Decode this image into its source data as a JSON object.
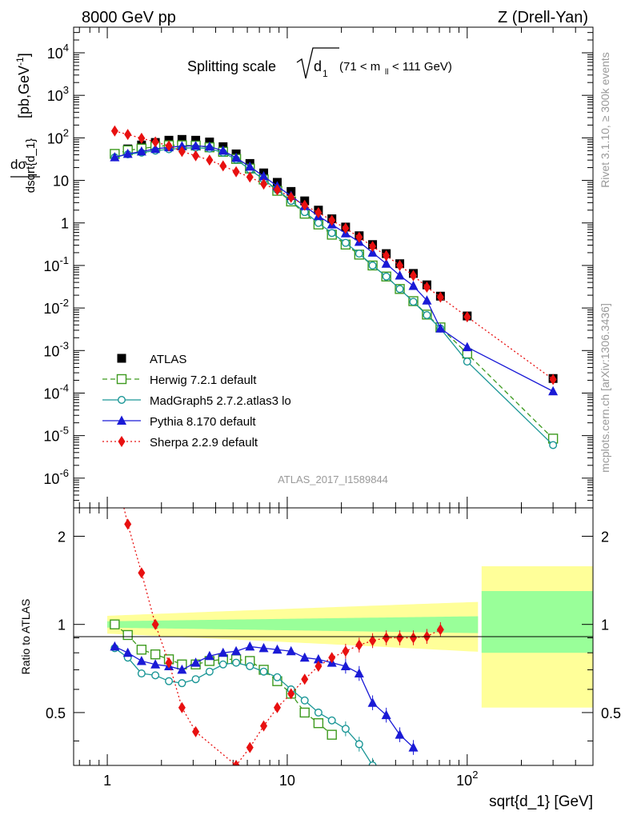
{
  "header": {
    "left": "8000 GeV pp",
    "right": "Z (Drell-Yan)"
  },
  "side": {
    "rivet": "Rivet 3.1.10, ≥ 300k events",
    "mcplots": "mcplots.cern.ch [arXiv:1306.3436]"
  },
  "watermark": "ATLAS_2017_I1589844",
  "chart_data": [
    {
      "type": "scatter",
      "title": "Splitting scale √d1 (71 < mll < 111 GeV)",
      "title_parts": {
        "main": "Splitting scale",
        "sym": "d",
        "sub": "1",
        "range": "(71 < m",
        "range_sub": "ll",
        "range_end": " < 111 GeV)"
      },
      "xlabel": "sqrt{d_1} [GeV]",
      "ylabel": "dσ/dsqrt{d_1} [pb,GeV⁻¹]",
      "ylabel_parts": {
        "num": "dσ",
        "den": "dsqrt{d_1}",
        "unit": "[pb,GeV",
        "unit_sup": "-1",
        "unit_end": "]"
      },
      "xscale": "log",
      "yscale": "log",
      "xlim": [
        0.65,
        500
      ],
      "ylim": [
        2e-07,
        40000.0
      ],
      "x_ticks": [
        "1",
        "10",
        "10²"
      ],
      "y_ticks": [
        "10⁻⁶",
        "10⁻⁵",
        "10⁻⁴",
        "10⁻³",
        "10⁻²",
        "10⁻¹",
        "1",
        "10",
        "10²",
        "10³",
        "10⁴"
      ],
      "legend_position": "lower-left",
      "series": [
        {
          "name": "ATLAS",
          "color": "#000000",
          "marker": "square",
          "x": [
            1.1,
            1.3,
            1.55,
            1.85,
            2.2,
            2.6,
            3.1,
            3.7,
            4.4,
            5.2,
            6.2,
            7.4,
            8.8,
            10.5,
            12.5,
            14.9,
            17.7,
            21.1,
            25.1,
            29.8,
            35.5,
            42.2,
            50.2,
            59.7,
            71.0,
            100,
            300
          ],
          "y": [
            42,
            55,
            68,
            78,
            88,
            92,
            88,
            80,
            62,
            42,
            25,
            15,
            9,
            5.5,
            3.3,
            2.0,
            1.25,
            0.8,
            0.5,
            0.31,
            0.19,
            0.11,
            0.065,
            0.035,
            0.019,
            0.0065,
            0.00022
          ]
        },
        {
          "name": "Herwig 7.2.1 default",
          "color": "#3d9a1e",
          "marker": "open-square",
          "line": "dashed",
          "x": [
            1.1,
            1.3,
            1.55,
            1.85,
            2.2,
            2.6,
            3.1,
            3.7,
            4.4,
            5.2,
            6.2,
            7.4,
            8.8,
            10.5,
            12.5,
            14.9,
            17.7,
            21.1,
            25.1,
            29.8,
            35.5,
            42.2,
            50.2,
            59.7,
            71.0,
            100,
            300
          ],
          "y": [
            42,
            51,
            56,
            62,
            67,
            67,
            66,
            60,
            47,
            32,
            19,
            10.5,
            5.7,
            3.2,
            1.65,
            0.92,
            0.53,
            0.31,
            0.18,
            0.1,
            0.055,
            0.028,
            0.0145,
            0.007,
            0.0035,
            0.00085,
            8.5e-06
          ]
        },
        {
          "name": "MadGraph5 2.7.2.atlas3 lo",
          "color": "#1a9696",
          "marker": "open-circle",
          "line": "solid",
          "x": [
            1.1,
            1.3,
            1.55,
            1.85,
            2.2,
            2.6,
            3.1,
            3.7,
            4.4,
            5.2,
            6.2,
            7.4,
            8.8,
            10.5,
            12.5,
            14.9,
            17.7,
            21.1,
            25.1,
            29.8,
            35.5,
            42.2,
            50.2,
            59.7,
            71.0,
            100,
            300
          ],
          "y": [
            35,
            41,
            45,
            50,
            54,
            57,
            59,
            56,
            45,
            31,
            18,
            10.5,
            6.0,
            3.3,
            1.8,
            1.0,
            0.58,
            0.34,
            0.19,
            0.1,
            0.055,
            0.028,
            0.014,
            0.0068,
            0.0033,
            0.00055,
            6e-06
          ]
        },
        {
          "name": "Pythia 8.170 default",
          "color": "#1a1ad6",
          "marker": "triangle",
          "line": "solid",
          "x": [
            1.1,
            1.3,
            1.55,
            1.85,
            2.2,
            2.6,
            3.1,
            3.7,
            4.4,
            5.2,
            6.2,
            7.4,
            8.8,
            10.5,
            12.5,
            14.9,
            17.7,
            21.1,
            25.1,
            29.8,
            35.5,
            42.2,
            50.2,
            59.7,
            71.0,
            100,
            300
          ],
          "y": [
            35,
            42,
            48,
            55,
            60,
            64,
            65,
            62,
            50,
            34,
            21,
            12.5,
            7.3,
            4.3,
            2.5,
            1.45,
            0.92,
            0.57,
            0.36,
            0.2,
            0.11,
            0.058,
            0.033,
            0.015,
            0.0033,
            0.0012,
            0.00011
          ]
        },
        {
          "name": "Sherpa 2.2.9 default",
          "color": "#e81010",
          "marker": "diamond",
          "line": "dotted",
          "x": [
            1.1,
            1.3,
            1.55,
            1.85,
            2.2,
            2.6,
            3.1,
            3.7,
            4.4,
            5.2,
            6.2,
            7.4,
            8.8,
            10.5,
            12.5,
            14.9,
            17.7,
            21.1,
            25.1,
            29.8,
            35.5,
            42.2,
            50.2,
            59.7,
            71.0,
            100,
            300
          ],
          "y": [
            145,
            120,
            98,
            80,
            65,
            48,
            38,
            30,
            22,
            16,
            12,
            8.2,
            6.0,
            4.0,
            2.6,
            1.75,
            1.15,
            0.75,
            0.46,
            0.28,
            0.17,
            0.1,
            0.058,
            0.031,
            0.018,
            0.0062,
            0.00021
          ]
        }
      ]
    },
    {
      "type": "line",
      "ylabel": "Ratio to ATLAS",
      "xscale": "log",
      "yscale": "log",
      "xlim": [
        0.65,
        500
      ],
      "ylim": [
        0.33,
        2.5
      ],
      "y_ticks": [
        "0.5",
        "1",
        "2"
      ],
      "band_inner_color": "#99ff99",
      "band_outer_color": "#ffff99",
      "series": [
        {
          "name": "Herwig 7.2.1 default",
          "color": "#3d9a1e",
          "x": [
            1.1,
            1.3,
            1.55,
            1.85,
            2.2,
            2.6,
            3.1,
            3.7,
            4.4,
            5.2,
            6.2,
            7.4,
            8.8,
            10.5,
            12.5,
            14.9,
            17.7
          ],
          "y": [
            1.0,
            0.92,
            0.82,
            0.79,
            0.76,
            0.73,
            0.73,
            0.75,
            0.76,
            0.76,
            0.75,
            0.7,
            0.64,
            0.58,
            0.5,
            0.46,
            0.42
          ]
        },
        {
          "name": "MadGraph5 2.7.2.atlas3 lo",
          "color": "#1a9696",
          "x": [
            1.1,
            1.3,
            1.55,
            1.85,
            2.2,
            2.6,
            3.1,
            3.7,
            4.4,
            5.2,
            6.2,
            7.4,
            8.8,
            10.5,
            12.5,
            14.9,
            17.7,
            21.1,
            25.1,
            29.8,
            35.5
          ],
          "y": [
            0.83,
            0.77,
            0.68,
            0.67,
            0.64,
            0.63,
            0.65,
            0.69,
            0.73,
            0.74,
            0.72,
            0.69,
            0.66,
            0.6,
            0.55,
            0.5,
            0.47,
            0.44,
            0.39,
            0.33,
            0.29
          ]
        },
        {
          "name": "Pythia 8.170 default",
          "color": "#1a1ad6",
          "x": [
            1.1,
            1.3,
            1.55,
            1.85,
            2.2,
            2.6,
            3.1,
            3.7,
            4.4,
            5.2,
            6.2,
            7.4,
            8.8,
            10.5,
            12.5,
            14.9,
            17.7,
            21.1,
            25.1,
            29.8,
            35.5,
            42.2,
            50.2
          ],
          "y": [
            0.84,
            0.8,
            0.75,
            0.73,
            0.72,
            0.7,
            0.74,
            0.78,
            0.8,
            0.81,
            0.84,
            0.83,
            0.82,
            0.81,
            0.77,
            0.76,
            0.74,
            0.72,
            0.68,
            0.54,
            0.49,
            0.42,
            0.38
          ]
        },
        {
          "name": "Sherpa 2.2.9 default",
          "color": "#e81010",
          "x": [
            1.1,
            1.3,
            1.55,
            1.85,
            2.2,
            2.6,
            3.1,
            5.2,
            6.2,
            7.4,
            8.8,
            10.5,
            12.5,
            14.9,
            17.7,
            21.1,
            25.1,
            29.8,
            35.5,
            42.2,
            50.2,
            59.7,
            71.0
          ],
          "y": [
            3.4,
            2.2,
            1.5,
            1.0,
            0.74,
            0.52,
            0.43,
            0.33,
            0.38,
            0.45,
            0.52,
            0.58,
            0.65,
            0.72,
            0.77,
            0.81,
            0.85,
            0.88,
            0.9,
            0.9,
            0.9,
            0.91,
            0.96
          ]
        }
      ]
    }
  ]
}
